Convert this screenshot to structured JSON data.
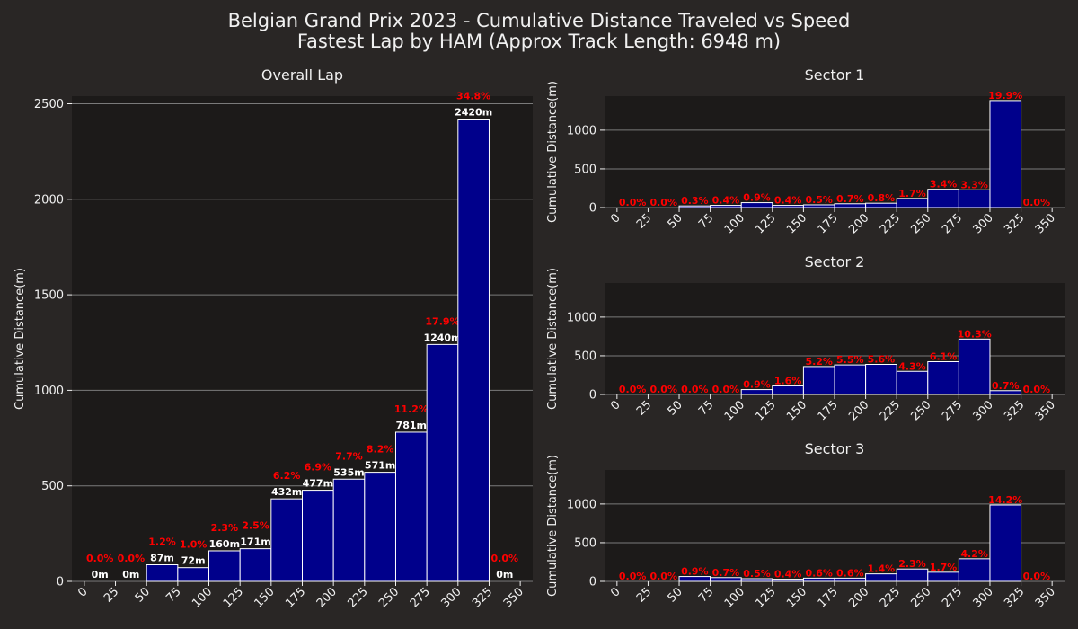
{
  "figure": {
    "title_line1": "Belgian Grand Prix 2023 - Cumulative Distance Traveled vs Speed",
    "title_line2": "Fastest Lap by HAM (Approx Track Length: 6948 m)",
    "colors": {
      "background": "#292625",
      "plot_background": "#1c1a19",
      "bar_fill": "#00008b",
      "bar_edge": "#ffffff",
      "distance_label": "#ffffff",
      "percent_label": "#ff0000",
      "grid": "#7a7a7a",
      "text": "#f0f0f0"
    }
  },
  "chart_data": [
    {
      "id": "overall",
      "type": "bar",
      "title": "Overall Lap",
      "xlabel": "",
      "ylabel": "Cumulative Distance(m)",
      "x_ticks": [
        0,
        25,
        50,
        75,
        100,
        125,
        150,
        175,
        200,
        225,
        250,
        275,
        300,
        325,
        350
      ],
      "bin_edges": [
        0,
        25,
        50,
        75,
        100,
        125,
        150,
        175,
        200,
        225,
        250,
        275,
        300,
        325,
        350
      ],
      "values": [
        0,
        0,
        87,
        72,
        160,
        171,
        432,
        477,
        535,
        571,
        781,
        1240,
        2420,
        0
      ],
      "value_labels": [
        "0m",
        "0m",
        "87m",
        "72m",
        "160m",
        "171m",
        "432m",
        "477m",
        "535m",
        "571m",
        "781m",
        "1240m",
        "2420m",
        "0m"
      ],
      "percent_labels": [
        "0.0%",
        "0.0%",
        "1.2%",
        "1.0%",
        "2.3%",
        "2.5%",
        "6.2%",
        "6.9%",
        "7.7%",
        "8.2%",
        "11.2%",
        "17.9%",
        "34.8%",
        "0.0%"
      ],
      "y_ticks": [
        0,
        500,
        1000,
        1500,
        2000,
        2500
      ],
      "xlim": [
        -10,
        360
      ],
      "ylim": [
        0,
        2540
      ],
      "grid": "horizontal"
    },
    {
      "id": "sector1",
      "type": "bar",
      "title": "Sector 1",
      "xlabel": "",
      "ylabel": "Cumulative Distance(m)",
      "x_ticks": [
        0,
        25,
        50,
        75,
        100,
        125,
        150,
        175,
        200,
        225,
        250,
        275,
        300,
        325,
        350
      ],
      "bin_edges": [
        0,
        25,
        50,
        75,
        100,
        125,
        150,
        175,
        200,
        225,
        250,
        275,
        300,
        325,
        350
      ],
      "values": [
        0,
        0,
        21,
        28,
        63,
        28,
        35,
        49,
        56,
        118,
        236,
        229,
        1383,
        0
      ],
      "percent_labels": [
        "0.0%",
        "0.0%",
        "0.3%",
        "0.4%",
        "0.9%",
        "0.4%",
        "0.5%",
        "0.7%",
        "0.8%",
        "1.7%",
        "3.4%",
        "3.3%",
        "19.9%",
        "0.0%"
      ],
      "y_ticks": [
        0,
        500,
        1000
      ],
      "xlim": [
        -10,
        360
      ],
      "ylim": [
        0,
        1440
      ],
      "grid": "horizontal"
    },
    {
      "id": "sector2",
      "type": "bar",
      "title": "Sector 2",
      "xlabel": "",
      "ylabel": "Cumulative Distance(m)",
      "x_ticks": [
        0,
        25,
        50,
        75,
        100,
        125,
        150,
        175,
        200,
        225,
        250,
        275,
        300,
        325,
        350
      ],
      "bin_edges": [
        0,
        25,
        50,
        75,
        100,
        125,
        150,
        175,
        200,
        225,
        250,
        275,
        300,
        325,
        350
      ],
      "values": [
        0,
        0,
        0,
        0,
        63,
        111,
        361,
        382,
        389,
        299,
        424,
        716,
        49,
        0
      ],
      "percent_labels": [
        "0.0%",
        "0.0%",
        "0.0%",
        "0.0%",
        "0.9%",
        "1.6%",
        "5.2%",
        "5.5%",
        "5.6%",
        "4.3%",
        "6.1%",
        "10.3%",
        "0.7%",
        "0.0%"
      ],
      "y_ticks": [
        0,
        500,
        1000
      ],
      "xlim": [
        -10,
        360
      ],
      "ylim": [
        0,
        1440
      ],
      "grid": "horizontal"
    },
    {
      "id": "sector3",
      "type": "bar",
      "title": "Sector 3",
      "xlabel": "",
      "ylabel": "Cumulative Distance(m)",
      "x_ticks": [
        0,
        25,
        50,
        75,
        100,
        125,
        150,
        175,
        200,
        225,
        250,
        275,
        300,
        325,
        350
      ],
      "bin_edges": [
        0,
        25,
        50,
        75,
        100,
        125,
        150,
        175,
        200,
        225,
        250,
        275,
        300,
        325,
        350
      ],
      "values": [
        0,
        0,
        63,
        49,
        35,
        28,
        42,
        42,
        97,
        160,
        118,
        292,
        987,
        0
      ],
      "percent_labels": [
        "0.0%",
        "0.0%",
        "0.9%",
        "0.7%",
        "0.5%",
        "0.4%",
        "0.6%",
        "0.6%",
        "1.4%",
        "2.3%",
        "1.7%",
        "4.2%",
        "14.2%",
        "0.0%"
      ],
      "y_ticks": [
        0,
        500,
        1000
      ],
      "xlim": [
        -10,
        360
      ],
      "ylim": [
        0,
        1440
      ],
      "grid": "horizontal"
    }
  ]
}
